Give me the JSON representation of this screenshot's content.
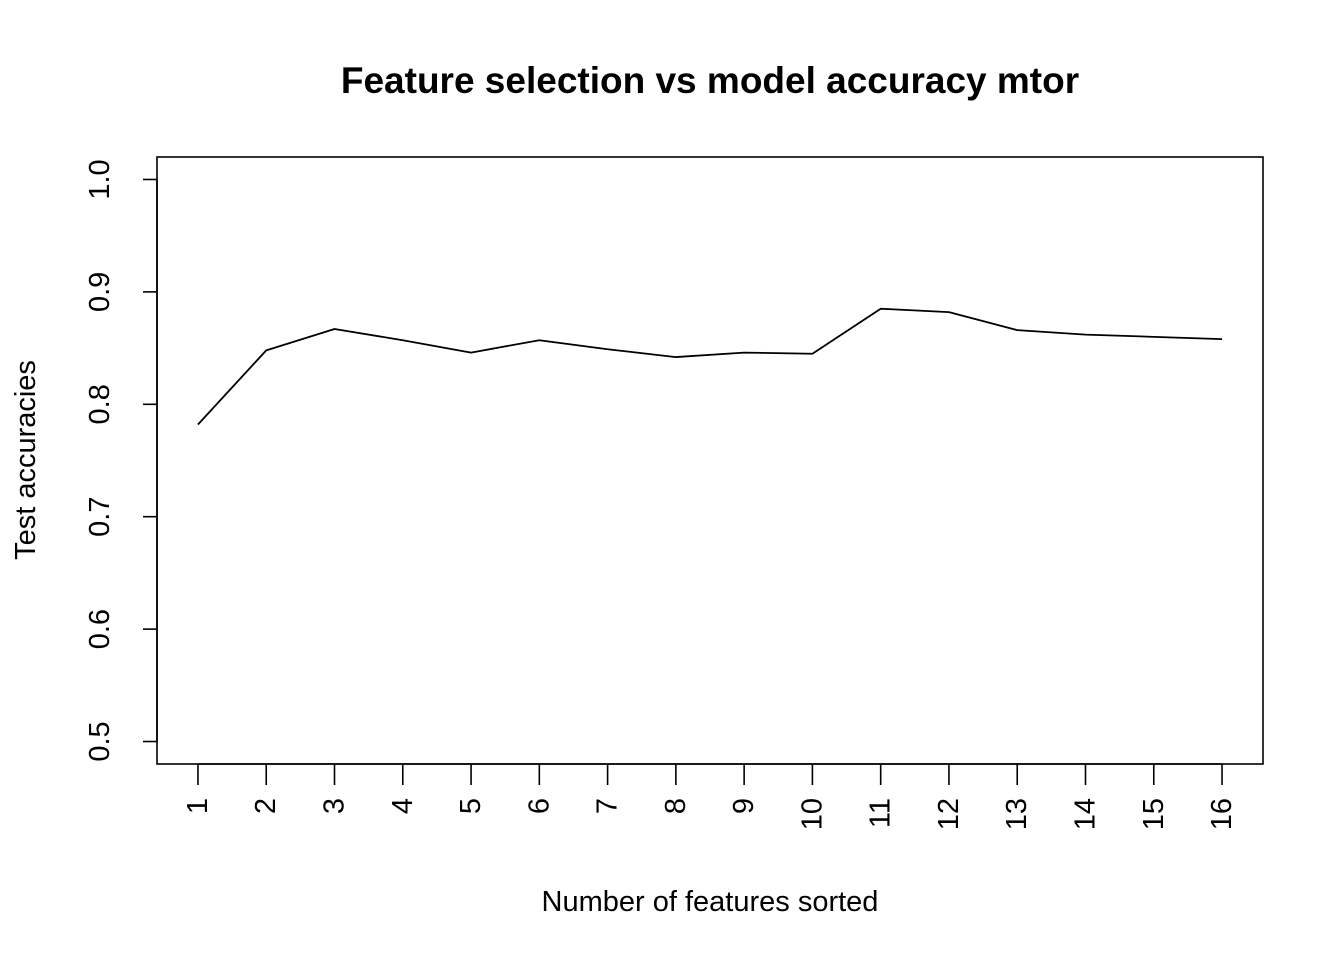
{
  "chart_data": {
    "type": "line",
    "title": "Feature selection vs model accuracy mtor",
    "xlabel": "Number of features sorted",
    "ylabel": "Test accuracies",
    "x": [
      1,
      2,
      3,
      4,
      5,
      6,
      7,
      8,
      9,
      10,
      11,
      12,
      13,
      14,
      15,
      16
    ],
    "x_tick_labels": [
      "1",
      "2",
      "3",
      "4",
      "5",
      "6",
      "7",
      "8",
      "9",
      "10",
      "11",
      "12",
      "13",
      "14",
      "15",
      "16"
    ],
    "y_ticks": [
      0.5,
      0.6,
      0.7,
      0.8,
      0.9,
      1.0
    ],
    "y_tick_labels": [
      "0.5",
      "0.6",
      "0.7",
      "0.8",
      "0.9",
      "1.0"
    ],
    "series": [
      {
        "values": [
          0.782,
          0.848,
          0.867,
          0.857,
          0.846,
          0.857,
          0.849,
          0.842,
          0.846,
          0.845,
          0.885,
          0.882,
          0.866,
          0.862,
          0.86,
          0.858
        ],
        "color": "#000000"
      }
    ],
    "xlim": [
      0.4,
      16.6
    ],
    "ylim": [
      0.48,
      1.02
    ],
    "grid": false,
    "legend": "none"
  }
}
